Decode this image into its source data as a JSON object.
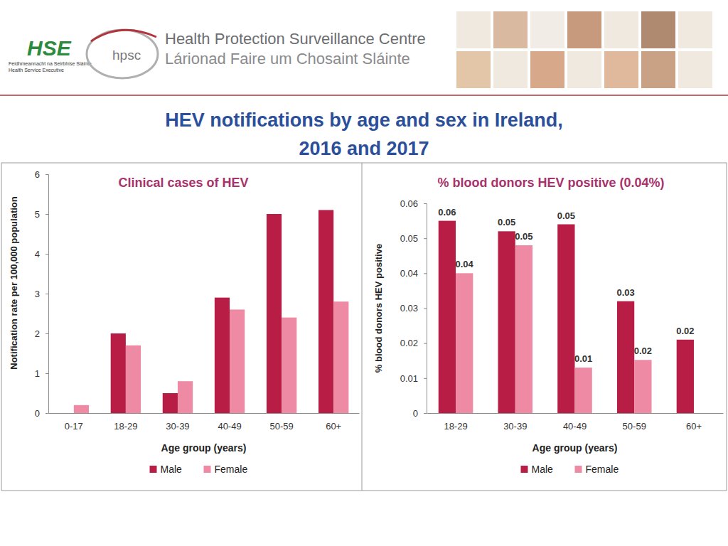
{
  "header": {
    "hse_logo": "HSE",
    "hse_text": [
      "Feidhmeannacht na Seirbhíse Sláinte",
      "Health Service Executive"
    ],
    "logo_text": "hpsc",
    "org_name": "Health Protection Surveillance Centre",
    "org_name_irish": "Lárionad Faire um Chosaint Sláinte"
  },
  "title": [
    "HEV notifications by age and sex in Ireland,",
    "2016 and 2017"
  ],
  "chart_data": [
    {
      "type": "bar",
      "title": "Clinical cases of HEV",
      "x_label": "Age group (years)",
      "y_label": "Notification rate per 100,000 population",
      "categories": [
        "0-17",
        "18-29",
        "30-39",
        "40-49",
        "50-59",
        "60+"
      ],
      "series": [
        {
          "name": "Male",
          "color": "#b81d45",
          "values": [
            0,
            2.0,
            0.5,
            2.9,
            5.0,
            5.1
          ]
        },
        {
          "name": "Female",
          "color": "#ee8aa3",
          "values": [
            0.2,
            1.7,
            0.8,
            2.6,
            2.4,
            2.8
          ]
        }
      ],
      "ylim": [
        0,
        6
      ],
      "yticks": [
        0,
        1,
        2,
        3,
        4,
        5,
        6
      ],
      "grid": false,
      "legend": "bottom",
      "data_labels": false
    },
    {
      "type": "bar",
      "title": "% blood donors HEV positive (0.04%)",
      "x_label": "Age group (years)",
      "y_label": "% blood donors HEV positive",
      "categories": [
        "18-29",
        "30-39",
        "40-49",
        "50-59",
        "60+"
      ],
      "series": [
        {
          "name": "Male",
          "color": "#b81d45",
          "values": [
            0.055,
            0.052,
            0.054,
            0.032,
            0.021
          ],
          "value_labels": [
            "0.06",
            "0.05",
            "0.05",
            "0.03",
            "0.02"
          ]
        },
        {
          "name": "Female",
          "color": "#ee8aa3",
          "values": [
            0.04,
            0.048,
            0.013,
            0.0152,
            null
          ],
          "value_labels": [
            "0.04",
            "0.05",
            "0.01",
            "0.02",
            null
          ]
        }
      ],
      "ylim": [
        0,
        0.06
      ],
      "yticks": [
        0,
        0.01,
        0.02,
        0.03,
        0.04,
        0.05,
        0.06
      ],
      "grid": false,
      "legend": "bottom",
      "data_labels": true
    }
  ]
}
